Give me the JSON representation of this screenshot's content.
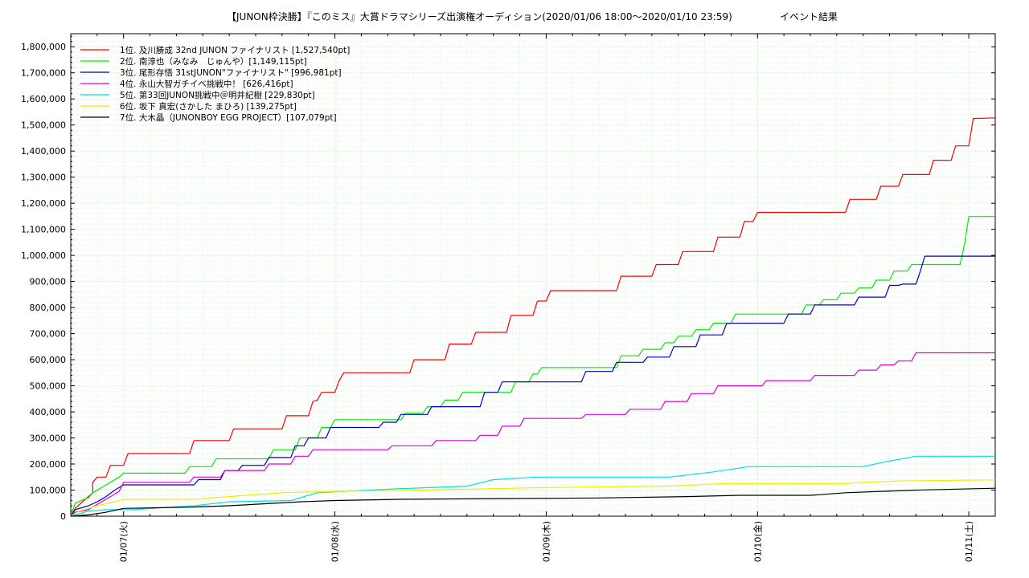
{
  "chart_data": {
    "type": "line",
    "title": "【JUNON枠決勝】『このミス』大賞ドラマシリーズ出演権オーディション(2020/01/06 18:00〜2020/01/10 23:59)",
    "subtitle": "イベント結果",
    "xlabel": "",
    "ylabel": "",
    "x_tick_labels": [
      "01/07(火)",
      "01/08(水)",
      "01/09(木)",
      "01/10(金)",
      "01/11(土)"
    ],
    "xlim_hours": [
      0,
      105
    ],
    "ylim": [
      0,
      1850000
    ],
    "y_ticks": [
      0,
      100000,
      200000,
      300000,
      400000,
      500000,
      600000,
      700000,
      800000,
      900000,
      1000000,
      1100000,
      1200000,
      1300000,
      1400000,
      1500000,
      1600000,
      1700000,
      1800000
    ],
    "y_tick_labels": [
      "0",
      "100,000",
      "200,000",
      "300,000",
      "400,000",
      "500,000",
      "600,000",
      "700,000",
      "800,000",
      "900,000",
      "1,000,000",
      "1,100,000",
      "1,200,000",
      "1,300,000",
      "1,400,000",
      "1,500,000",
      "1,600,000",
      "1,700,000",
      "1,800,000"
    ],
    "grid": true,
    "legend_position": "top-left",
    "series": [
      {
        "name": "1位. 及川勝成 32nd JUNON ファイナリスト [1,527,540pt]",
        "color": "#ff0000",
        "points": [
          [
            0,
            0
          ],
          [
            0.5,
            30000
          ],
          [
            1.5,
            60000
          ],
          [
            2.5,
            90000
          ],
          [
            2.5,
            130000
          ],
          [
            3,
            150000
          ],
          [
            4,
            150000
          ],
          [
            4.5,
            195000
          ],
          [
            6,
            195000
          ],
          [
            6.5,
            240000
          ],
          [
            13.5,
            240000
          ],
          [
            14,
            290000
          ],
          [
            18,
            290000
          ],
          [
            18.5,
            335000
          ],
          [
            24,
            335000
          ],
          [
            24.5,
            385000
          ],
          [
            27,
            385000
          ],
          [
            27.5,
            440000
          ],
          [
            28,
            445000
          ],
          [
            28.5,
            475000
          ],
          [
            30,
            475000
          ],
          [
            30.5,
            520000
          ],
          [
            31,
            550000
          ],
          [
            38.5,
            550000
          ],
          [
            39,
            600000
          ],
          [
            42.5,
            600000
          ],
          [
            43,
            660000
          ],
          [
            45.5,
            660000
          ],
          [
            46,
            705000
          ],
          [
            49.5,
            705000
          ],
          [
            50,
            770000
          ],
          [
            52.5,
            770000
          ],
          [
            53,
            825000
          ],
          [
            54,
            825000
          ],
          [
            54.5,
            865000
          ],
          [
            62,
            865000
          ],
          [
            62.5,
            920000
          ],
          [
            66,
            920000
          ],
          [
            66.5,
            965000
          ],
          [
            69,
            965000
          ],
          [
            69.5,
            1015000
          ],
          [
            73,
            1015000
          ],
          [
            73.5,
            1070000
          ],
          [
            76,
            1070000
          ],
          [
            76.5,
            1130000
          ],
          [
            77.5,
            1130000
          ],
          [
            78,
            1165000
          ],
          [
            88,
            1165000
          ],
          [
            88.5,
            1215000
          ],
          [
            91.5,
            1215000
          ],
          [
            92,
            1265000
          ],
          [
            94,
            1265000
          ],
          [
            94.5,
            1310000
          ],
          [
            97.5,
            1310000
          ],
          [
            98,
            1365000
          ],
          [
            100,
            1365000
          ],
          [
            100.5,
            1420000
          ],
          [
            102,
            1420000
          ],
          [
            102.5,
            1525000
          ],
          [
            105,
            1527540
          ]
        ]
      },
      {
        "name": "2位. 南淳也（みなみ　じゅんや）[1,149,115pt]",
        "color": "#00ee00",
        "points": [
          [
            0,
            0
          ],
          [
            0.5,
            50000
          ],
          [
            1.5,
            65000
          ],
          [
            2,
            70000
          ],
          [
            2.5,
            90000
          ],
          [
            3.5,
            110000
          ],
          [
            4.5,
            130000
          ],
          [
            5.5,
            150000
          ],
          [
            6,
            165000
          ],
          [
            13,
            165000
          ],
          [
            13.5,
            190000
          ],
          [
            16,
            190000
          ],
          [
            16.5,
            220000
          ],
          [
            22.5,
            220000
          ],
          [
            23,
            255000
          ],
          [
            25.5,
            255000
          ],
          [
            26,
            300000
          ],
          [
            28,
            300000
          ],
          [
            28.5,
            340000
          ],
          [
            29.5,
            340000
          ],
          [
            30,
            370000
          ],
          [
            37.5,
            370000
          ],
          [
            38,
            395000
          ],
          [
            40,
            395000
          ],
          [
            40.5,
            420000
          ],
          [
            42,
            420000
          ],
          [
            42.5,
            445000
          ],
          [
            44,
            445000
          ],
          [
            44.5,
            475000
          ],
          [
            50,
            475000
          ],
          [
            50.5,
            515000
          ],
          [
            52,
            515000
          ],
          [
            52.5,
            545000
          ],
          [
            53,
            545000
          ],
          [
            53.5,
            570000
          ],
          [
            62,
            570000
          ],
          [
            62.5,
            615000
          ],
          [
            64.5,
            615000
          ],
          [
            65,
            640000
          ],
          [
            67,
            640000
          ],
          [
            67.5,
            665000
          ],
          [
            68.5,
            665000
          ],
          [
            69,
            690000
          ],
          [
            70.5,
            690000
          ],
          [
            71,
            715000
          ],
          [
            72.5,
            715000
          ],
          [
            73,
            740000
          ],
          [
            75,
            740000
          ],
          [
            75.5,
            775000
          ],
          [
            83,
            775000
          ],
          [
            83.5,
            810000
          ],
          [
            85,
            810000
          ],
          [
            85.5,
            830000
          ],
          [
            87,
            830000
          ],
          [
            87.5,
            855000
          ],
          [
            89,
            855000
          ],
          [
            89.5,
            875000
          ],
          [
            91,
            875000
          ],
          [
            91.5,
            905000
          ],
          [
            93,
            905000
          ],
          [
            93.5,
            940000
          ],
          [
            95,
            940000
          ],
          [
            95.5,
            965000
          ],
          [
            101,
            965000
          ],
          [
            101.5,
            1040000
          ],
          [
            102,
            1149115
          ],
          [
            105,
            1149115
          ]
        ]
      },
      {
        "name": "3位. 尾形存悟 31stJUNON\"ファイナリスト\" [996,981pt]",
        "color": "#0000cc",
        "points": [
          [
            0,
            0
          ],
          [
            0.5,
            25000
          ],
          [
            2,
            40000
          ],
          [
            3,
            55000
          ],
          [
            4,
            75000
          ],
          [
            5,
            100000
          ],
          [
            6,
            120000
          ],
          [
            14,
            120000
          ],
          [
            14.5,
            140000
          ],
          [
            17,
            140000
          ],
          [
            17.5,
            175000
          ],
          [
            19,
            175000
          ],
          [
            19.5,
            195000
          ],
          [
            22,
            195000
          ],
          [
            22.5,
            225000
          ],
          [
            25,
            225000
          ],
          [
            25.5,
            270000
          ],
          [
            26.5,
            270000
          ],
          [
            27,
            300000
          ],
          [
            29,
            300000
          ],
          [
            29.5,
            340000
          ],
          [
            35,
            340000
          ],
          [
            35.5,
            360000
          ],
          [
            37,
            360000
          ],
          [
            37.5,
            390000
          ],
          [
            40.5,
            390000
          ],
          [
            41,
            420000
          ],
          [
            46.5,
            420000
          ],
          [
            47,
            475000
          ],
          [
            48.5,
            475000
          ],
          [
            49,
            515000
          ],
          [
            58,
            515000
          ],
          [
            58.5,
            555000
          ],
          [
            61.5,
            555000
          ],
          [
            62,
            590000
          ],
          [
            65,
            590000
          ],
          [
            65.5,
            610000
          ],
          [
            68,
            610000
          ],
          [
            68.5,
            650000
          ],
          [
            71,
            650000
          ],
          [
            71.5,
            695000
          ],
          [
            74,
            695000
          ],
          [
            74.5,
            740000
          ],
          [
            81,
            740000
          ],
          [
            81.5,
            775000
          ],
          [
            84,
            775000
          ],
          [
            84.5,
            810000
          ],
          [
            89,
            810000
          ],
          [
            89.5,
            840000
          ],
          [
            92.5,
            840000
          ],
          [
            93,
            885000
          ],
          [
            94,
            885000
          ],
          [
            94.5,
            890000
          ],
          [
            96,
            890000
          ],
          [
            96.5,
            940000
          ],
          [
            97,
            996981
          ],
          [
            105,
            996981
          ]
        ]
      },
      {
        "name": "4位. 永山大智ガチイベ挑戦中！ [626,416pt]",
        "color": "#dd00dd",
        "points": [
          [
            0,
            0
          ],
          [
            0.5,
            15000
          ],
          [
            2,
            25000
          ],
          [
            3.5,
            55000
          ],
          [
            4.5,
            75000
          ],
          [
            5.5,
            95000
          ],
          [
            6,
            130000
          ],
          [
            13.5,
            130000
          ],
          [
            14,
            150000
          ],
          [
            17,
            150000
          ],
          [
            17.5,
            175000
          ],
          [
            22,
            175000
          ],
          [
            22.5,
            200000
          ],
          [
            25,
            200000
          ],
          [
            25.5,
            230000
          ],
          [
            27,
            230000
          ],
          [
            27.5,
            255000
          ],
          [
            36,
            255000
          ],
          [
            36.5,
            270000
          ],
          [
            41,
            270000
          ],
          [
            41.5,
            290000
          ],
          [
            46,
            290000
          ],
          [
            46.5,
            310000
          ],
          [
            48.5,
            310000
          ],
          [
            49,
            345000
          ],
          [
            51,
            345000
          ],
          [
            51.5,
            375000
          ],
          [
            58,
            375000
          ],
          [
            58.5,
            390000
          ],
          [
            63,
            390000
          ],
          [
            63.5,
            410000
          ],
          [
            67,
            410000
          ],
          [
            67.5,
            440000
          ],
          [
            70,
            440000
          ],
          [
            70.5,
            470000
          ],
          [
            73,
            470000
          ],
          [
            73.5,
            500000
          ],
          [
            78.5,
            500000
          ],
          [
            79,
            520000
          ],
          [
            84,
            520000
          ],
          [
            84.5,
            540000
          ],
          [
            89,
            540000
          ],
          [
            89.5,
            560000
          ],
          [
            91.5,
            560000
          ],
          [
            92,
            580000
          ],
          [
            93.5,
            580000
          ],
          [
            94,
            595000
          ],
          [
            95.5,
            595000
          ],
          [
            96,
            626416
          ],
          [
            105,
            626416
          ]
        ]
      },
      {
        "name": "5位. 第33回JUNON挑戦中＠明井紀樹 [229,830pt]",
        "color": "#00e0e0",
        "points": [
          [
            0,
            0
          ],
          [
            1,
            10000
          ],
          [
            2,
            20000
          ],
          [
            4,
            25000
          ],
          [
            7,
            25000
          ],
          [
            14,
            40000
          ],
          [
            18,
            55000
          ],
          [
            25,
            60000
          ],
          [
            28,
            90000
          ],
          [
            34,
            100000
          ],
          [
            37,
            105000
          ],
          [
            45,
            115000
          ],
          [
            48,
            140000
          ],
          [
            53,
            150000
          ],
          [
            68,
            150000
          ],
          [
            73,
            170000
          ],
          [
            77,
            190000
          ],
          [
            90,
            190000
          ],
          [
            92,
            205000
          ],
          [
            96,
            230000
          ],
          [
            105,
            229830
          ]
        ]
      },
      {
        "name": "6位. 坂下 真宏(さかした まひろ) [139,275pt]",
        "color": "#eeee00",
        "points": [
          [
            0,
            0
          ],
          [
            1,
            20000
          ],
          [
            3,
            40000
          ],
          [
            5,
            55000
          ],
          [
            6,
            65000
          ],
          [
            14,
            65000
          ],
          [
            20,
            80000
          ],
          [
            24,
            90000
          ],
          [
            30,
            95000
          ],
          [
            40,
            100000
          ],
          [
            54,
            110000
          ],
          [
            68,
            115000
          ],
          [
            74,
            125000
          ],
          [
            88,
            125000
          ],
          [
            90,
            130000
          ],
          [
            94,
            135000
          ],
          [
            105,
            139275
          ]
        ]
      },
      {
        "name": "7位. 大木晶（JUNONBOY EGG PROJECT）[107,079pt]",
        "color": "#000000",
        "points": [
          [
            0,
            0
          ],
          [
            2,
            5000
          ],
          [
            4,
            15000
          ],
          [
            6,
            30000
          ],
          [
            14,
            35000
          ],
          [
            18,
            40000
          ],
          [
            26,
            55000
          ],
          [
            30,
            60000
          ],
          [
            38,
            65000
          ],
          [
            60,
            70000
          ],
          [
            70,
            75000
          ],
          [
            76,
            80000
          ],
          [
            84,
            80000
          ],
          [
            88,
            90000
          ],
          [
            92,
            95000
          ],
          [
            96,
            100000
          ],
          [
            105,
            107079
          ]
        ]
      }
    ]
  }
}
